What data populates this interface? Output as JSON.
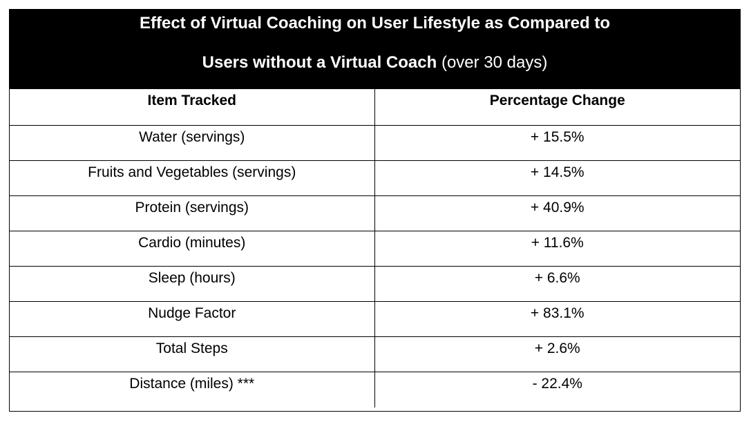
{
  "title": {
    "line1": "Effect of Virtual Coaching on User Lifestyle as Compared to",
    "line2_bold": "Users without a Virtual Coach",
    "line2_normal": " (over 30 days)"
  },
  "table": {
    "headers": [
      "Item Tracked",
      "Percentage Change"
    ],
    "rows": [
      {
        "item": "Water (servings)",
        "change": "+ 15.5%"
      },
      {
        "item": "Fruits and Vegetables (servings)",
        "change": "+ 14.5%"
      },
      {
        "item": "Protein (servings)",
        "change": "+ 40.9%"
      },
      {
        "item": "Cardio (minutes)",
        "change": "+ 11.6%"
      },
      {
        "item": "Sleep (hours)",
        "change": "+ 6.6%"
      },
      {
        "item": "Nudge Factor",
        "change": "+ 83.1%"
      },
      {
        "item": "Total Steps",
        "change": "+ 2.6%"
      },
      {
        "item": "Distance (miles) ***",
        "change": "- 22.4%"
      }
    ]
  }
}
